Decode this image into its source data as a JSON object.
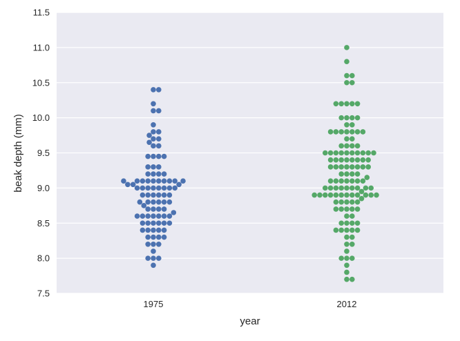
{
  "chart_data": {
    "type": "scatter",
    "style": "swarm",
    "xlabel": "year",
    "ylabel": "beak depth (mm)",
    "ylim": [
      7.5,
      11.5
    ],
    "yticks": [
      "7.5",
      "8.0",
      "8.5",
      "9.0",
      "9.5",
      "10.0",
      "10.5",
      "11.0",
      "11.5"
    ],
    "grid": true,
    "background": "#eaeaf2",
    "gridColor": "#ffffff",
    "categories": [
      "1975",
      "2012"
    ],
    "series": [
      {
        "category": "1975",
        "color": "#4c72b0",
        "values": [
          7.9,
          8.0,
          8.0,
          8.0,
          8.1,
          8.2,
          8.2,
          8.2,
          8.3,
          8.3,
          8.3,
          8.3,
          8.4,
          8.4,
          8.4,
          8.4,
          8.4,
          8.5,
          8.5,
          8.5,
          8.5,
          8.5,
          8.5,
          8.6,
          8.6,
          8.6,
          8.6,
          8.6,
          8.6,
          8.6,
          8.65,
          8.7,
          8.7,
          8.7,
          8.7,
          8.75,
          8.8,
          8.8,
          8.8,
          8.8,
          8.8,
          8.8,
          8.9,
          8.9,
          8.9,
          8.9,
          8.9,
          8.9,
          9.0,
          9.0,
          9.0,
          9.0,
          9.0,
          9.0,
          9.0,
          9.0,
          9.05,
          9.05,
          9.05,
          9.1,
          9.1,
          9.1,
          9.1,
          9.1,
          9.1,
          9.1,
          9.1,
          9.1,
          9.1,
          9.2,
          9.2,
          9.2,
          9.2,
          9.3,
          9.3,
          9.3,
          9.45,
          9.45,
          9.45,
          9.45,
          9.6,
          9.6,
          9.65,
          9.7,
          9.7,
          9.75,
          9.8,
          9.8,
          9.9,
          10.1,
          10.1,
          10.2,
          10.4,
          10.4
        ]
      },
      {
        "category": "2012",
        "color": "#55a868",
        "values": [
          7.7,
          7.7,
          7.8,
          7.9,
          8.0,
          8.0,
          8.0,
          8.1,
          8.2,
          8.2,
          8.3,
          8.3,
          8.4,
          8.4,
          8.4,
          8.4,
          8.4,
          8.5,
          8.5,
          8.5,
          8.5,
          8.6,
          8.6,
          8.7,
          8.7,
          8.7,
          8.7,
          8.7,
          8.8,
          8.8,
          8.8,
          8.8,
          8.8,
          8.85,
          8.9,
          8.9,
          8.9,
          8.9,
          8.9,
          8.9,
          8.9,
          8.9,
          8.9,
          8.9,
          8.9,
          8.9,
          8.95,
          9.0,
          9.0,
          9.0,
          9.0,
          9.0,
          9.0,
          9.0,
          9.0,
          9.0,
          9.1,
          9.1,
          9.1,
          9.1,
          9.1,
          9.1,
          9.1,
          9.15,
          9.2,
          9.2,
          9.2,
          9.2,
          9.3,
          9.3,
          9.3,
          9.3,
          9.3,
          9.3,
          9.3,
          9.3,
          9.4,
          9.4,
          9.4,
          9.4,
          9.4,
          9.4,
          9.4,
          9.4,
          9.5,
          9.5,
          9.5,
          9.5,
          9.5,
          9.5,
          9.5,
          9.5,
          9.5,
          9.5,
          9.6,
          9.6,
          9.6,
          9.6,
          9.7,
          9.7,
          9.8,
          9.8,
          9.8,
          9.8,
          9.8,
          9.8,
          9.8,
          9.9,
          9.9,
          10.0,
          10.0,
          10.0,
          10.0,
          10.2,
          10.2,
          10.2,
          10.2,
          10.2,
          10.5,
          10.5,
          10.6,
          10.6,
          10.8,
          11.0
        ]
      }
    ]
  }
}
